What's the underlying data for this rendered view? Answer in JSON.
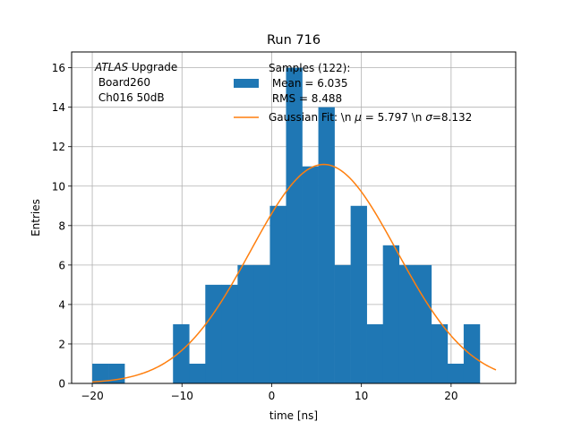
{
  "chart_data": {
    "type": "bar",
    "title": "Run 716",
    "xlabel": "time [ns]",
    "ylabel": "Entries",
    "xlim": [
      -22.3,
      27.2
    ],
    "ylim": [
      0,
      16.8
    ],
    "xticks": [
      -20,
      -10,
      0,
      10,
      20
    ],
    "yticks": [
      0,
      2,
      4,
      6,
      8,
      10,
      12,
      14,
      16
    ],
    "grid": true,
    "legend_position": "top-right",
    "annotation": {
      "line1_italic": "ATLAS",
      "line1_rest": " Upgrade",
      "line2": " Board260",
      "line3": " Ch016 50dB"
    },
    "histogram": {
      "name_lines": [
        "Samples (122):",
        " Mean = 6.035",
        " RMS = 8.488"
      ],
      "color": "#1f77b4",
      "bin_edges": [
        -20.0,
        -18.2,
        -16.4,
        -14.6,
        -12.8,
        -11.0,
        -9.2,
        -7.4,
        -5.6,
        -3.8,
        -2.0,
        -0.2,
        1.6,
        3.4,
        5.2,
        7.0,
        8.8,
        10.6,
        12.4,
        14.2,
        16.0,
        17.8,
        19.6,
        21.4,
        23.2,
        25.0
      ],
      "counts": [
        1,
        1,
        0,
        0,
        0,
        3,
        1,
        5,
        5,
        6,
        6,
        9,
        16,
        11,
        14,
        6,
        9,
        3,
        7,
        6,
        6,
        3,
        1,
        3,
        0
      ]
    },
    "fit": {
      "name_prefix": "Gaussian Fit: \\n ",
      "mu_symbol": "μ",
      "mu_text": " = 5.797 \\n ",
      "sigma_symbol": "σ",
      "sigma_text": "=8.132",
      "color": "#ff7f0e",
      "amplitude": 11.1,
      "mu": 5.797,
      "sigma": 8.132,
      "x_range": [
        -20,
        25
      ]
    }
  }
}
